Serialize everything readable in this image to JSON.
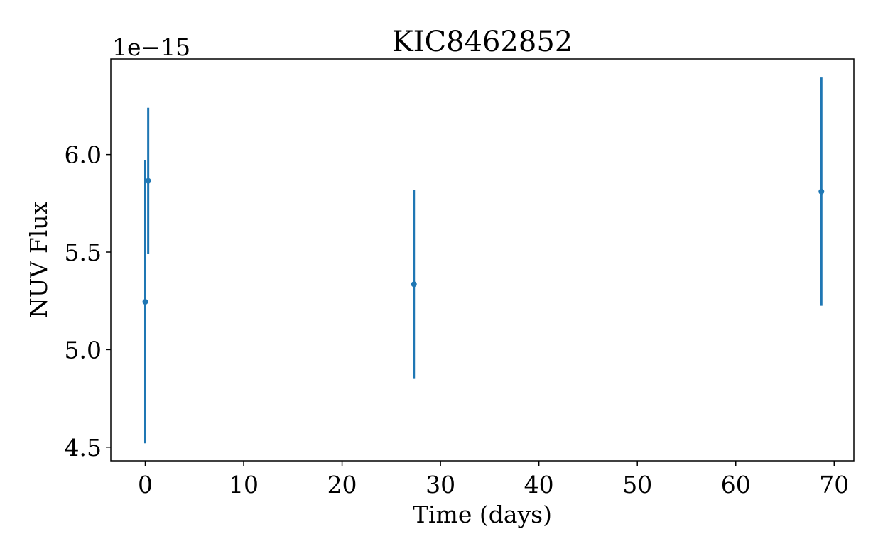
{
  "chart_data": {
    "type": "scatter",
    "title": "KIC8462852",
    "xlabel": "Time (days)",
    "ylabel": "NUV Flux",
    "y_offset_label": "1e−15",
    "xlim": [
      -3.5,
      72
    ],
    "ylim": [
      4.43,
      6.49
    ],
    "x_ticks": [
      0,
      10,
      20,
      30,
      40,
      50,
      60,
      70
    ],
    "x_tick_labels": [
      "0",
      "10",
      "20",
      "30",
      "40",
      "50",
      "60",
      "70"
    ],
    "y_ticks": [
      4.5,
      5.0,
      5.5,
      6.0
    ],
    "y_tick_labels": [
      "4.5",
      "5.0",
      "5.5",
      "6.0"
    ],
    "grid": false,
    "color": "#1f77b4",
    "series": [
      {
        "x": [
          0.0,
          0.3,
          27.3,
          68.7
        ],
        "y": [
          5.245,
          5.865,
          5.335,
          5.81
        ],
        "yerr": [
          0.725,
          0.375,
          0.485,
          0.585
        ]
      }
    ]
  }
}
